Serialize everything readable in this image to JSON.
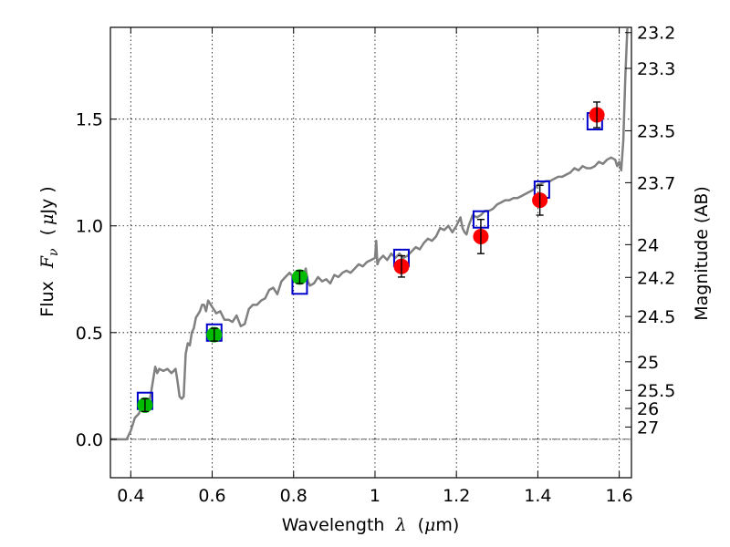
{
  "chart_data": {
    "type": "scatter",
    "xlabel_text": "Wavelength",
    "xlabel_symbol": "λ",
    "xlabel_unit_open": "(",
    "xlabel_unit_mu": "μ",
    "xlabel_unit_rest": "m)",
    "ylabel_text": "Flux",
    "ylabel_symbol_F": "F",
    "ylabel_symbol_nu": "ν",
    "ylabel_unit_open": "(",
    "ylabel_unit_mu": "μ",
    "ylabel_unit_rest": "Jy )",
    "y2label": "Magnitude (AB)",
    "xlim": [
      0.35,
      1.63
    ],
    "ylim": [
      -0.18,
      1.93
    ],
    "x_ticks": [
      0.4,
      0.6,
      0.8,
      1.0,
      1.2,
      1.4,
      1.6
    ],
    "x_tick_labels": [
      "0.4",
      "0.6",
      "0.8",
      "1",
      "1.2",
      "1.4",
      "1.6"
    ],
    "y_ticks": [
      0.0,
      0.5,
      1.0,
      1.5
    ],
    "y_tick_labels": [
      "0.0",
      "0.5",
      "1.0",
      "1.5"
    ],
    "mag_ticks": [
      "23.2",
      "23.3",
      "23.5",
      "23.7",
      "24",
      "24.2",
      "24.5",
      "25",
      "25.5",
      "26",
      "27"
    ],
    "grid": true,
    "series": [
      {
        "name": "model-spectrum",
        "kind": "line",
        "color": "#808080",
        "points": [
          [
            0.35,
            0.0
          ],
          [
            0.39,
            0.0
          ],
          [
            0.4,
            0.04
          ],
          [
            0.41,
            0.1
          ],
          [
            0.42,
            0.12
          ],
          [
            0.43,
            0.17
          ],
          [
            0.44,
            0.19
          ],
          [
            0.445,
            0.17
          ],
          [
            0.45,
            0.22
          ],
          [
            0.46,
            0.34
          ],
          [
            0.465,
            0.31
          ],
          [
            0.47,
            0.33
          ],
          [
            0.48,
            0.32
          ],
          [
            0.49,
            0.33
          ],
          [
            0.5,
            0.31
          ],
          [
            0.51,
            0.33
          ],
          [
            0.515,
            0.27
          ],
          [
            0.52,
            0.2
          ],
          [
            0.525,
            0.19
          ],
          [
            0.53,
            0.2
          ],
          [
            0.535,
            0.4
          ],
          [
            0.54,
            0.45
          ],
          [
            0.545,
            0.44
          ],
          [
            0.55,
            0.5
          ],
          [
            0.555,
            0.52
          ],
          [
            0.56,
            0.57
          ],
          [
            0.57,
            0.6
          ],
          [
            0.575,
            0.63
          ],
          [
            0.58,
            0.63
          ],
          [
            0.585,
            0.6
          ],
          [
            0.59,
            0.65
          ],
          [
            0.6,
            0.62
          ],
          [
            0.61,
            0.59
          ],
          [
            0.62,
            0.6
          ],
          [
            0.63,
            0.56
          ],
          [
            0.64,
            0.56
          ],
          [
            0.65,
            0.55
          ],
          [
            0.66,
            0.58
          ],
          [
            0.67,
            0.53
          ],
          [
            0.68,
            0.54
          ],
          [
            0.69,
            0.61
          ],
          [
            0.7,
            0.63
          ],
          [
            0.71,
            0.63
          ],
          [
            0.72,
            0.65
          ],
          [
            0.73,
            0.66
          ],
          [
            0.74,
            0.7
          ],
          [
            0.75,
            0.71
          ],
          [
            0.76,
            0.68
          ],
          [
            0.77,
            0.74
          ],
          [
            0.78,
            0.76
          ],
          [
            0.79,
            0.78
          ],
          [
            0.8,
            0.76
          ],
          [
            0.81,
            0.77
          ],
          [
            0.82,
            0.75
          ],
          [
            0.83,
            0.8
          ],
          [
            0.835,
            0.74
          ],
          [
            0.84,
            0.72
          ],
          [
            0.85,
            0.73
          ],
          [
            0.86,
            0.76
          ],
          [
            0.87,
            0.74
          ],
          [
            0.88,
            0.75
          ],
          [
            0.89,
            0.73
          ],
          [
            0.9,
            0.77
          ],
          [
            0.91,
            0.76
          ],
          [
            0.92,
            0.78
          ],
          [
            0.93,
            0.79
          ],
          [
            0.94,
            0.78
          ],
          [
            0.95,
            0.8
          ],
          [
            0.96,
            0.82
          ],
          [
            0.97,
            0.81
          ],
          [
            0.98,
            0.83
          ],
          [
            0.99,
            0.84
          ],
          [
            1.0,
            0.85
          ],
          [
            1.003,
            0.93
          ],
          [
            1.006,
            0.82
          ],
          [
            1.01,
            0.84
          ],
          [
            1.02,
            0.86
          ],
          [
            1.03,
            0.84
          ],
          [
            1.04,
            0.87
          ],
          [
            1.05,
            0.85
          ],
          [
            1.06,
            0.87
          ],
          [
            1.07,
            0.85
          ],
          [
            1.08,
            0.86
          ],
          [
            1.09,
            0.88
          ],
          [
            1.1,
            0.9
          ],
          [
            1.11,
            0.89
          ],
          [
            1.12,
            0.92
          ],
          [
            1.13,
            0.94
          ],
          [
            1.14,
            0.93
          ],
          [
            1.15,
            0.95
          ],
          [
            1.16,
            0.99
          ],
          [
            1.17,
            0.98
          ],
          [
            1.18,
            1.0
          ],
          [
            1.19,
            0.97
          ],
          [
            1.2,
            1.0
          ],
          [
            1.21,
            1.04
          ],
          [
            1.215,
            0.99
          ],
          [
            1.22,
            0.97
          ],
          [
            1.225,
            0.96
          ],
          [
            1.23,
            1.0
          ],
          [
            1.24,
            1.05
          ],
          [
            1.25,
            1.04
          ],
          [
            1.26,
            1.05
          ],
          [
            1.27,
            1.07
          ],
          [
            1.28,
            1.07
          ],
          [
            1.29,
            1.08
          ],
          [
            1.3,
            1.1
          ],
          [
            1.31,
            1.11
          ],
          [
            1.32,
            1.12
          ],
          [
            1.33,
            1.12
          ],
          [
            1.34,
            1.13
          ],
          [
            1.35,
            1.13
          ],
          [
            1.36,
            1.14
          ],
          [
            1.37,
            1.15
          ],
          [
            1.38,
            1.16
          ],
          [
            1.39,
            1.17
          ],
          [
            1.4,
            1.19
          ],
          [
            1.41,
            1.2
          ],
          [
            1.42,
            1.21
          ],
          [
            1.43,
            1.21
          ],
          [
            1.44,
            1.22
          ],
          [
            1.45,
            1.23
          ],
          [
            1.46,
            1.23
          ],
          [
            1.47,
            1.24
          ],
          [
            1.48,
            1.25
          ],
          [
            1.49,
            1.27
          ],
          [
            1.5,
            1.26
          ],
          [
            1.51,
            1.28
          ],
          [
            1.52,
            1.27
          ],
          [
            1.53,
            1.27
          ],
          [
            1.54,
            1.28
          ],
          [
            1.55,
            1.3
          ],
          [
            1.56,
            1.29
          ],
          [
            1.57,
            1.31
          ],
          [
            1.58,
            1.32
          ],
          [
            1.59,
            1.31
          ],
          [
            1.595,
            1.28
          ],
          [
            1.6,
            1.3
          ],
          [
            1.605,
            1.26
          ],
          [
            1.61,
            1.4
          ],
          [
            1.615,
            1.7
          ],
          [
            1.62,
            1.93
          ]
        ]
      },
      {
        "name": "model-photometry",
        "kind": "open-square",
        "color": "#0000cc",
        "points": [
          [
            0.435,
            0.18
          ],
          [
            0.605,
            0.5
          ],
          [
            0.815,
            0.72
          ],
          [
            1.065,
            0.85
          ],
          [
            1.26,
            1.03
          ],
          [
            1.41,
            1.17
          ],
          [
            1.54,
            1.49
          ]
        ]
      },
      {
        "name": "observed-optical",
        "kind": "circle",
        "color": "#00bb00",
        "points": [
          [
            0.435,
            0.16
          ],
          [
            0.605,
            0.49
          ],
          [
            0.815,
            0.76
          ]
        ],
        "errors": [
          0.03,
          0.03,
          0.03
        ]
      },
      {
        "name": "observed-infrared",
        "kind": "circle",
        "color": "#ff0000",
        "points": [
          [
            1.065,
            0.81
          ],
          [
            1.26,
            0.95
          ],
          [
            1.405,
            1.12
          ],
          [
            1.545,
            1.52
          ]
        ],
        "errors": [
          0.05,
          0.08,
          0.07,
          0.06
        ]
      }
    ]
  }
}
